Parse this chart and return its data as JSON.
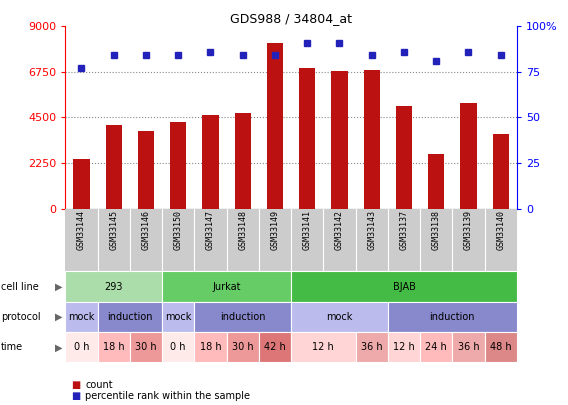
{
  "title": "GDS988 / 34804_at",
  "samples": [
    "GSM33144",
    "GSM33145",
    "GSM33146",
    "GSM33150",
    "GSM33147",
    "GSM33148",
    "GSM33149",
    "GSM33141",
    "GSM33142",
    "GSM33143",
    "GSM33137",
    "GSM33138",
    "GSM33139",
    "GSM33140"
  ],
  "counts": [
    2450,
    4150,
    3850,
    4300,
    4600,
    4700,
    8200,
    6950,
    6800,
    6850,
    5050,
    2700,
    5200,
    3700
  ],
  "percentile": [
    77,
    84,
    84,
    84,
    86,
    84,
    84,
    91,
    91,
    84,
    86,
    81,
    86,
    84
  ],
  "ylim_left": [
    0,
    9000
  ],
  "ylim_right": [
    0,
    100
  ],
  "yticks_left": [
    0,
    2250,
    4500,
    6750,
    9000
  ],
  "yticks_right": [
    0,
    25,
    50,
    75,
    100
  ],
  "bar_color": "#bb1111",
  "dot_color": "#2222bb",
  "cell_line_groups": [
    {
      "label": "293",
      "start": 0,
      "end": 3,
      "color": "#aaddaa"
    },
    {
      "label": "Jurkat",
      "start": 3,
      "end": 7,
      "color": "#66cc66"
    },
    {
      "label": "BJAB",
      "start": 7,
      "end": 14,
      "color": "#44bb44"
    }
  ],
  "protocol_groups": [
    {
      "label": "mock",
      "start": 0,
      "end": 1,
      "color": "#bbbbee"
    },
    {
      "label": "induction",
      "start": 1,
      "end": 3,
      "color": "#8888cc"
    },
    {
      "label": "mock",
      "start": 3,
      "end": 4,
      "color": "#bbbbee"
    },
    {
      "label": "induction",
      "start": 4,
      "end": 7,
      "color": "#8888cc"
    },
    {
      "label": "mock",
      "start": 7,
      "end": 10,
      "color": "#bbbbee"
    },
    {
      "label": "induction",
      "start": 10,
      "end": 14,
      "color": "#8888cc"
    }
  ],
  "time_groups": [
    {
      "label": "0 h",
      "start": 0,
      "end": 1,
      "color": "#ffeaea"
    },
    {
      "label": "18 h",
      "start": 1,
      "end": 2,
      "color": "#ffbbbb"
    },
    {
      "label": "30 h",
      "start": 2,
      "end": 3,
      "color": "#ee9999"
    },
    {
      "label": "0 h",
      "start": 3,
      "end": 4,
      "color": "#ffeaea"
    },
    {
      "label": "18 h",
      "start": 4,
      "end": 5,
      "color": "#ffbbbb"
    },
    {
      "label": "30 h",
      "start": 5,
      "end": 6,
      "color": "#ee9999"
    },
    {
      "label": "42 h",
      "start": 6,
      "end": 7,
      "color": "#dd7777"
    },
    {
      "label": "12 h",
      "start": 7,
      "end": 9,
      "color": "#ffd5d5"
    },
    {
      "label": "36 h",
      "start": 9,
      "end": 10,
      "color": "#eeaaaa"
    },
    {
      "label": "12 h",
      "start": 10,
      "end": 11,
      "color": "#ffd5d5"
    },
    {
      "label": "24 h",
      "start": 11,
      "end": 12,
      "color": "#ffbbbb"
    },
    {
      "label": "36 h",
      "start": 12,
      "end": 13,
      "color": "#eeaaaa"
    },
    {
      "label": "48 h",
      "start": 13,
      "end": 14,
      "color": "#dd8888"
    }
  ],
  "row_labels": [
    "cell line",
    "protocol",
    "time"
  ],
  "legend_items": [
    {
      "label": "count",
      "color": "#bb1111"
    },
    {
      "label": "percentile rank within the sample",
      "color": "#2222bb"
    }
  ],
  "background_color": "#ffffff",
  "grid_color": "#888888",
  "xlabel_bg": "#cccccc",
  "spine_color": "#000000",
  "bar_width": 0.5
}
